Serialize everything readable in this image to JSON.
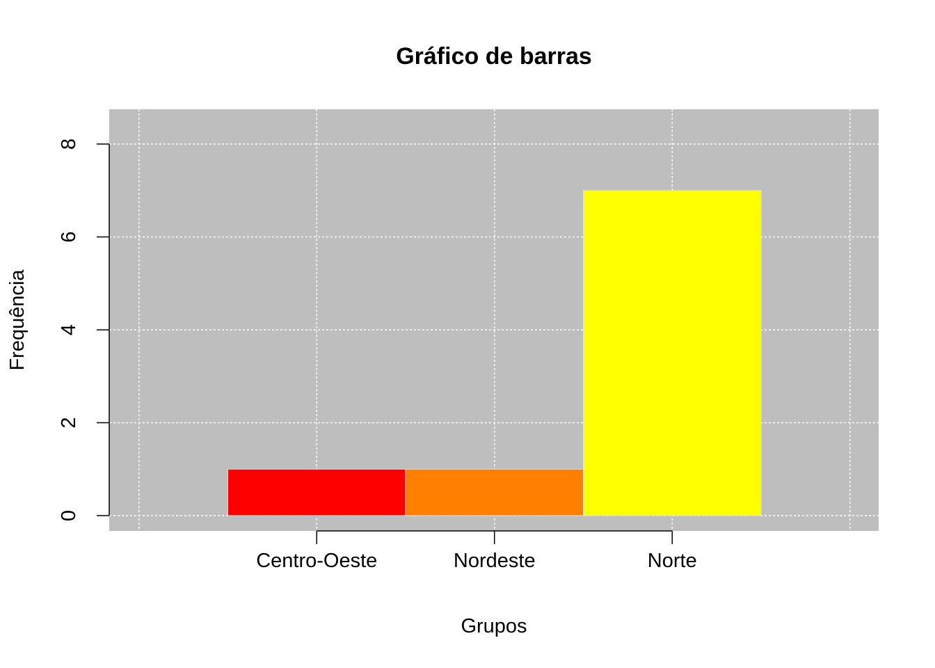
{
  "chart_data": {
    "type": "bar",
    "title": "Gráfico de barras",
    "xlabel": "Grupos",
    "ylabel": "Frequência",
    "categories": [
      "Centro-Oeste",
      "Nordeste",
      "Norte"
    ],
    "values": [
      1,
      1,
      7
    ],
    "colors": [
      "#FF0000",
      "#FF8000",
      "#FFFF00"
    ],
    "ylim": [
      0,
      8
    ],
    "yticks": [
      0,
      2,
      4,
      6,
      8
    ],
    "grid": true,
    "panel_background": "#BEBEBE",
    "grid_color": "#FFFFFF",
    "legend": "none"
  }
}
